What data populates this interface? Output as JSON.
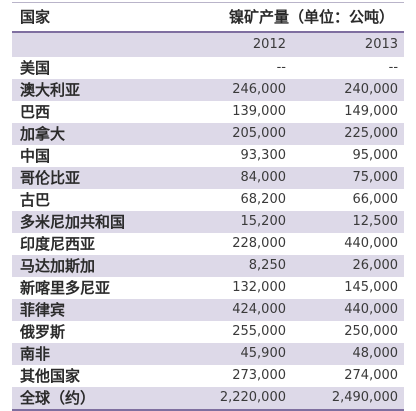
{
  "table": {
    "header": {
      "country": "国家",
      "unit": "镍矿产量（单位：公吨）"
    },
    "years": [
      "2012",
      "2013"
    ],
    "rows": [
      {
        "country": "美国",
        "y2012": "--",
        "y2013": "--"
      },
      {
        "country": "澳大利亚",
        "y2012": "246,000",
        "y2013": "240,000"
      },
      {
        "country": "巴西",
        "y2012": "139,000",
        "y2013": "149,000"
      },
      {
        "country": "加拿大",
        "y2012": "205,000",
        "y2013": "225,000"
      },
      {
        "country": "中国",
        "y2012": "93,300",
        "y2013": "95,000"
      },
      {
        "country": "哥伦比亚",
        "y2012": "84,000",
        "y2013": "75,000"
      },
      {
        "country": "古巴",
        "y2012": "68,200",
        "y2013": "66,000"
      },
      {
        "country": "多米尼加共和国",
        "y2012": "15,200",
        "y2013": "12,500"
      },
      {
        "country": "印度尼西亚",
        "y2012": "228,000",
        "y2013": "440,000"
      },
      {
        "country": "马达加斯加",
        "y2012": "8,250",
        "y2013": "26,000"
      },
      {
        "country": "新喀里多尼亚",
        "y2012": "132,000",
        "y2013": "145,000"
      },
      {
        "country": "菲律宾",
        "y2012": "424,000",
        "y2013": "440,000"
      },
      {
        "country": "俄罗斯",
        "y2012": "255,000",
        "y2013": "250,000"
      },
      {
        "country": "南非",
        "y2012": "45,900",
        "y2013": "48,000"
      },
      {
        "country": "其他国家",
        "y2012": "273,000",
        "y2013": "274,000"
      },
      {
        "country": "全球（约）",
        "y2012": "2,220,000",
        "y2013": "2,490,000"
      }
    ]
  },
  "colors": {
    "shade": "#ddd9e8",
    "rule": "#7f6fa0"
  }
}
